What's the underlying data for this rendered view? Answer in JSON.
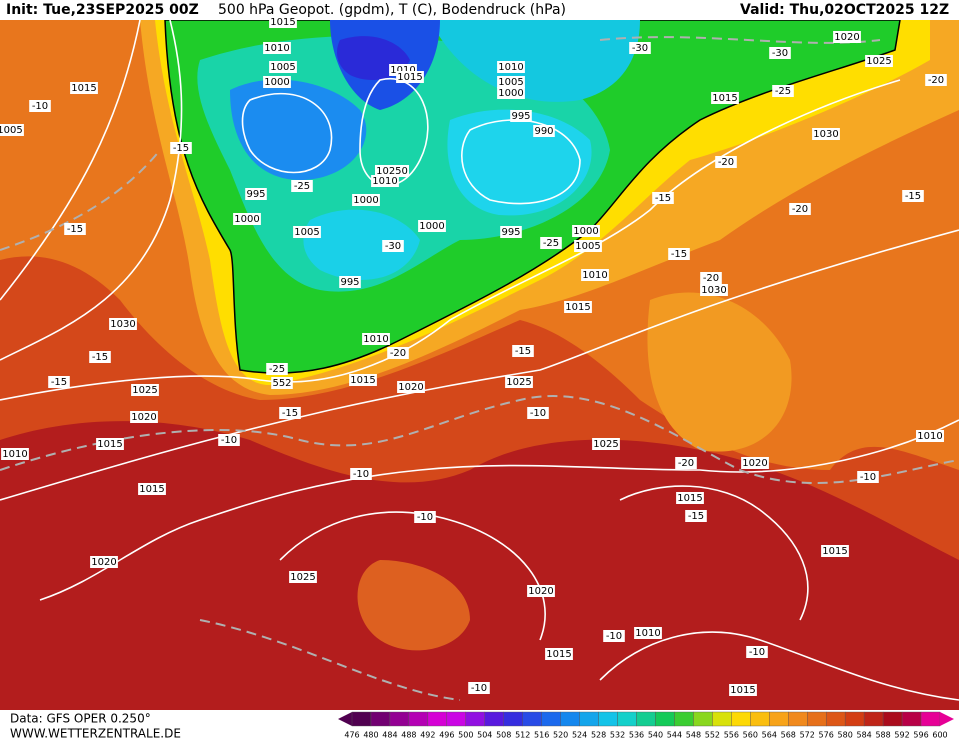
{
  "header": {
    "init": "Init: Tue,23SEP2025 00Z",
    "title": "500 hPa Geopot. (gpdm), T (C), Bodendruck (hPa)",
    "valid": "Valid: Thu,02OCT2025 12Z"
  },
  "footer": {
    "source": "Data: GFS OPER 0.250°",
    "site": "WWW.WETTERZENTRALE.DE"
  },
  "legend": {
    "labels": [
      "476",
      "480",
      "484",
      "488",
      "492",
      "496",
      "500",
      "504",
      "508",
      "512",
      "516",
      "520",
      "524",
      "528",
      "532",
      "536",
      "540",
      "544",
      "548",
      "552",
      "556",
      "560",
      "564",
      "568",
      "572",
      "576",
      "580",
      "584",
      "588",
      "592",
      "596",
      "600"
    ]
  },
  "map": {
    "contour_labels": [
      "1015",
      "1010",
      "1005",
      "1000",
      "1010",
      "1015",
      "1010",
      "1005",
      "1000",
      "995",
      "990",
      "1020",
      "1025",
      "1015",
      "1030",
      "-10",
      "1015",
      "-15",
      "-25",
      "995",
      "1000",
      "10250",
      "1010",
      "1000",
      "1005",
      "-30",
      "995",
      "1000",
      "995",
      "-25",
      "1000",
      "1005",
      "1010",
      "1015",
      "-15",
      "-20",
      "-20",
      "-15",
      "-15",
      "-20",
      "1030",
      "-30",
      "-30",
      "-25",
      "-20",
      "1030",
      "-15",
      "-15",
      "-15",
      "1025",
      "1020",
      "1015",
      "1015",
      "1010",
      "1005",
      "1010",
      "1015",
      "-20",
      "-25",
      "552",
      "-15",
      "-10",
      "1020",
      "1025",
      "-15",
      "-10",
      "1025",
      "-20",
      "1020",
      "1015",
      "-15",
      "-10",
      "1010",
      "-10",
      "-10",
      "1025",
      "1020",
      "1020",
      "1015",
      "1015",
      "-10",
      "1010",
      "-10",
      "1015",
      "-10",
      "1010"
    ]
  }
}
